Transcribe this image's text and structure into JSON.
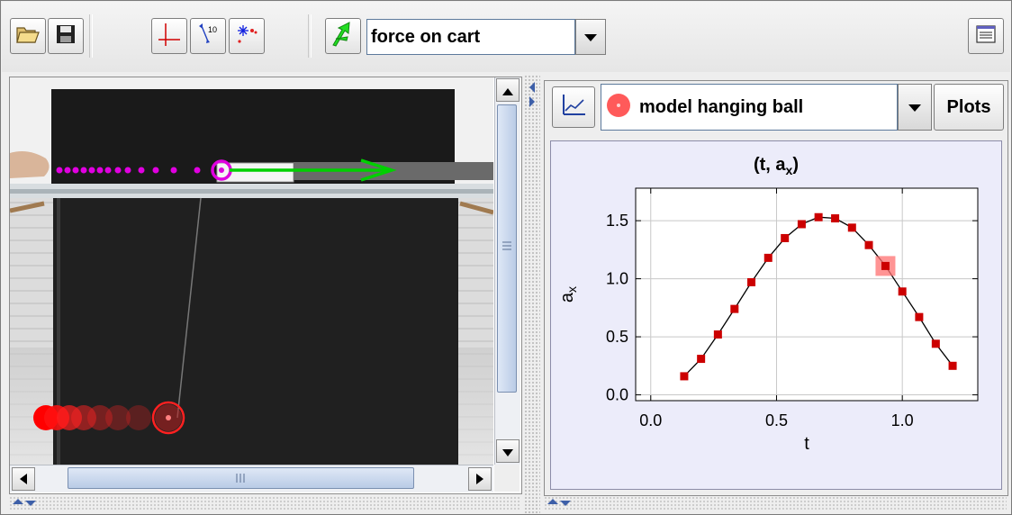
{
  "toolbar": {
    "buttons": [
      {
        "name": "open-icon"
      },
      {
        "name": "save-icon"
      },
      {
        "name": "coordinate-axes-icon"
      },
      {
        "name": "calibration-tool-icon"
      },
      {
        "name": "autotracker-icon"
      },
      {
        "name": "model-builder-icon"
      }
    ],
    "selected_track": "force on cart",
    "notes_icon": "notes-icon"
  },
  "video": {
    "description_icons": [
      "cart-trail",
      "force-vector",
      "hanging-ball-trail"
    ],
    "colors": {
      "cart_trail": "#e000e0",
      "force_vector": "#00d000",
      "ball_trail": "#ff0000"
    }
  },
  "plot_panel": {
    "track_name": "model hanging ball",
    "plots_button": "Plots",
    "track_color": "#ff5050"
  },
  "chart_data": {
    "type": "line",
    "title_main": "(t, a",
    "title_sub": "x",
    "title_end": ")",
    "xlabel": "t",
    "ylabel_main": "a",
    "ylabel_sub": "x",
    "xlim": [
      -0.06,
      1.3
    ],
    "ylim": [
      -0.05,
      1.78
    ],
    "xticks": [
      0.0,
      0.5,
      1.0
    ],
    "xtick_labels": [
      "0.0",
      "0.5",
      "1.0"
    ],
    "yticks": [
      0.0,
      0.5,
      1.0,
      1.5
    ],
    "ytick_labels": [
      "0.0",
      "0.5",
      "1.0",
      "1.5"
    ],
    "grid": true,
    "color": "#cc0000",
    "highlight_index": 12,
    "x": [
      0.133,
      0.2,
      0.267,
      0.333,
      0.4,
      0.467,
      0.533,
      0.6,
      0.667,
      0.733,
      0.8,
      0.867,
      0.933,
      1.0,
      1.067,
      1.133,
      1.2
    ],
    "y": [
      0.16,
      0.31,
      0.52,
      0.74,
      0.97,
      1.18,
      1.35,
      1.47,
      1.53,
      1.52,
      1.44,
      1.29,
      1.11,
      0.89,
      0.67,
      0.44,
      0.25
    ]
  }
}
